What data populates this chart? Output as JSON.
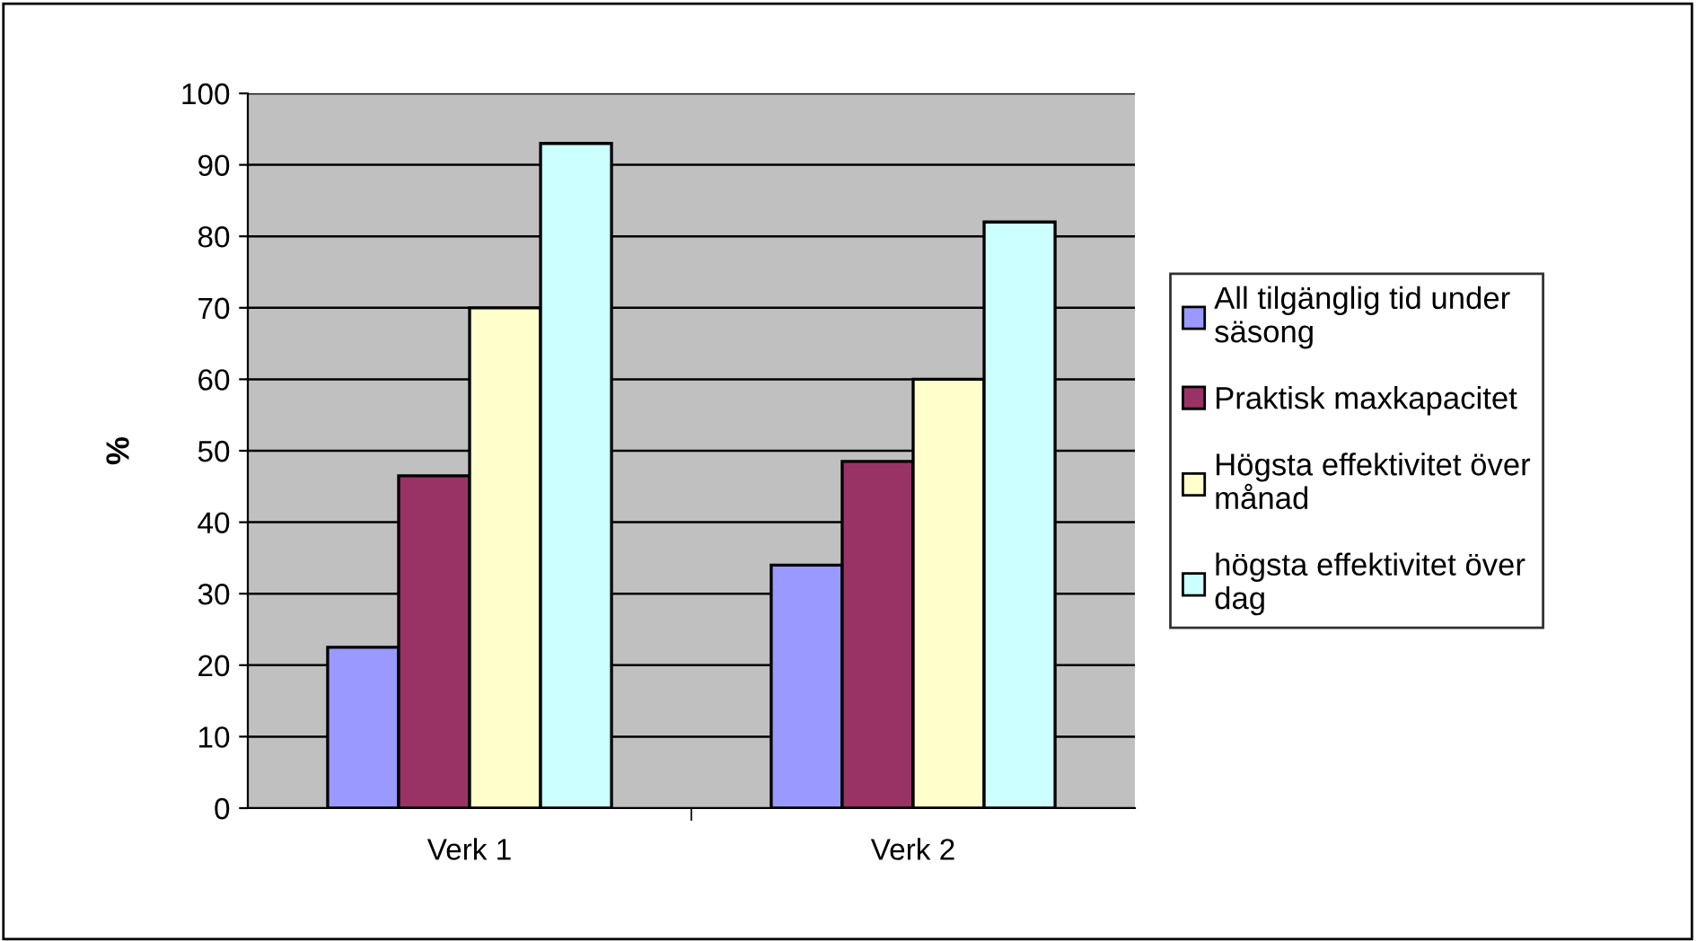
{
  "chart_data": {
    "type": "bar",
    "ylabel": "%",
    "categories": [
      "Verk 1",
      "Verk 2"
    ],
    "series": [
      {
        "name": "All tilgänglig tid under säsong",
        "color": "#9999ff",
        "values": [
          22.5,
          34
        ]
      },
      {
        "name": "Praktisk maxkapacitet",
        "color": "#993366",
        "values": [
          46.5,
          48.5
        ]
      },
      {
        "name": "Högsta effektivitet över månad",
        "color": "#ffffcc",
        "values": [
          70,
          60
        ]
      },
      {
        "name": "högsta effektivitet över dag",
        "color": "#ccffff",
        "values": [
          93,
          82
        ]
      }
    ],
    "ylim": [
      0,
      100
    ],
    "yticks": [
      0,
      10,
      20,
      30,
      40,
      50,
      60,
      70,
      80,
      90,
      100
    ],
    "grid": "y",
    "legend": "right"
  }
}
